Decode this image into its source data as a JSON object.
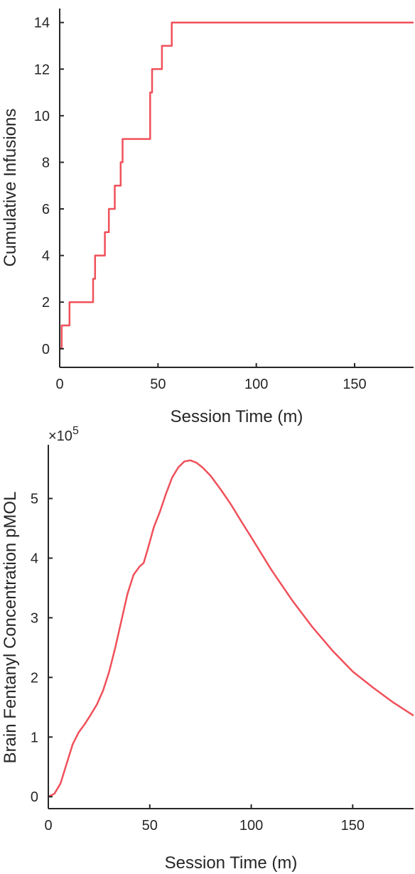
{
  "chart_data": [
    {
      "type": "line",
      "step": true,
      "xlabel": "Session Time (m)",
      "ylabel": "Cumulative Infusions",
      "xlim": [
        0,
        180
      ],
      "ylim": [
        -0.8,
        14.6
      ],
      "xticks": [
        0,
        50,
        100,
        150
      ],
      "yticks": [
        0,
        2,
        4,
        6,
        8,
        10,
        12,
        14
      ],
      "grid": false,
      "color": "#f0505a",
      "series": [
        {
          "x": [
            0,
            0.5,
            1,
            4,
            5,
            7,
            17,
            18,
            22,
            23,
            25,
            26,
            28,
            31,
            32,
            46,
            47,
            52,
            57,
            180
          ],
          "values": [
            0,
            0,
            1,
            1,
            2,
            2,
            3,
            4,
            4,
            5,
            6,
            6,
            7,
            8,
            9,
            11,
            12,
            13,
            14,
            14
          ]
        }
      ]
    },
    {
      "type": "line",
      "xlabel": "Session Time (m)",
      "ylabel": "Brain Fentanyl Concentration pMOL",
      "y_exponent_label": "×10",
      "y_exponent": "5",
      "xlim": [
        0,
        180
      ],
      "ylim": [
        -0.2,
        5.9
      ],
      "y_scale": 100000,
      "xticks": [
        0,
        50,
        100,
        150
      ],
      "yticks": [
        0,
        1,
        2,
        3,
        4,
        5
      ],
      "grid": false,
      "color": "#f0505a",
      "series": [
        {
          "x": [
            0,
            3,
            6,
            9,
            12,
            15,
            18,
            21,
            24,
            27,
            30,
            33,
            36,
            39,
            42,
            45,
            47,
            49,
            52,
            55,
            58,
            61,
            64,
            67,
            70,
            73,
            76,
            80,
            85,
            90,
            95,
            100,
            110,
            120,
            130,
            140,
            150,
            160,
            170,
            180
          ],
          "values": [
            0,
            0.05,
            0.22,
            0.55,
            0.88,
            1.08,
            1.22,
            1.38,
            1.55,
            1.78,
            2.1,
            2.5,
            2.95,
            3.4,
            3.72,
            3.86,
            3.92,
            4.15,
            4.52,
            4.78,
            5.08,
            5.35,
            5.52,
            5.62,
            5.64,
            5.6,
            5.52,
            5.38,
            5.15,
            4.9,
            4.62,
            4.35,
            3.8,
            3.3,
            2.85,
            2.45,
            2.1,
            1.83,
            1.58,
            1.36
          ]
        }
      ]
    }
  ]
}
